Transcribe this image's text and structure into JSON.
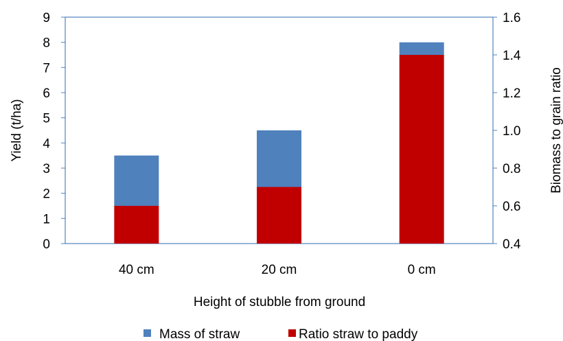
{
  "chart_data": {
    "type": "bar",
    "stacked": true,
    "categories": [
      "40 cm",
      "20 cm",
      "0 cm"
    ],
    "series": [
      {
        "name": "Ratio straw to paddy",
        "values": [
          1.5,
          2.25,
          7.5
        ],
        "color": "#c00000"
      },
      {
        "name": "Mass of straw",
        "values": [
          2.0,
          2.25,
          0.5
        ],
        "color": "#4f81bd"
      }
    ],
    "xlabel": "Height of stubble from ground",
    "ylabel": "Yield (t/ha)",
    "y2label": "Biomass to grain ratio",
    "ylim": [
      0,
      9
    ],
    "yticks": [
      "0",
      "1",
      "2",
      "3",
      "4",
      "5",
      "6",
      "7",
      "8",
      "9"
    ],
    "y2lim": [
      0.4,
      1.6
    ],
    "y2ticks": [
      "0.4",
      "0.6",
      "0.8",
      "1.0",
      "1.2",
      "1.4",
      "1.6"
    ],
    "grid": false,
    "legend_position": "bottom",
    "legend_order": [
      "Mass of straw",
      "Ratio straw to paddy"
    ],
    "frame_color": "#4f81bd"
  }
}
